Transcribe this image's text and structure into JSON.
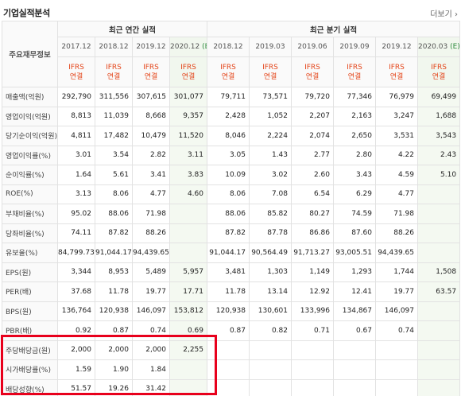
{
  "header": {
    "title": "기업실적분석",
    "more_label": "더보기 ›"
  },
  "table": {
    "row_header_label": "주요재무정보",
    "annual_group_label": "최근 연간 실적",
    "quarter_group_label": "최근 분기 실적",
    "estimate_mark": "(E)",
    "ifrs_line1": "IFRS",
    "ifrs_line2": "연결",
    "annual_periods": [
      "2017.12",
      "2018.12",
      "2019.12",
      "2020.12"
    ],
    "quarter_periods": [
      "2018.12",
      "2019.03",
      "2019.06",
      "2019.09",
      "2019.12",
      "2020.03"
    ],
    "rows": [
      {
        "label": "매출액(억원)",
        "values": [
          "292,790",
          "311,556",
          "307,615",
          "301,077",
          "79,711",
          "73,571",
          "79,720",
          "77,346",
          "76,979",
          "69,499"
        ]
      },
      {
        "label": "영업이익(억원)",
        "values": [
          "8,813",
          "11,039",
          "8,668",
          "9,357",
          "2,428",
          "1,052",
          "2,207",
          "2,163",
          "3,247",
          "1,688"
        ]
      },
      {
        "label": "당기순이익(억원)",
        "values": [
          "4,811",
          "17,482",
          "10,479",
          "11,520",
          "8,046",
          "2,224",
          "2,074",
          "2,650",
          "3,531",
          "3,543"
        ]
      },
      {
        "label": "영업이익률(%)",
        "values": [
          "3.01",
          "3.54",
          "2.82",
          "3.11",
          "3.05",
          "1.43",
          "2.77",
          "2.80",
          "4.22",
          "2.43"
        ]
      },
      {
        "label": "순이익률(%)",
        "values": [
          "1.64",
          "5.61",
          "3.41",
          "3.83",
          "10.09",
          "3.02",
          "2.60",
          "3.43",
          "4.59",
          "5.10"
        ]
      },
      {
        "label": "ROE(%)",
        "values": [
          "3.13",
          "8.06",
          "4.77",
          "4.60",
          "8.06",
          "7.08",
          "6.54",
          "6.29",
          "4.77",
          ""
        ]
      },
      {
        "label": "부채비율(%)",
        "values": [
          "95.02",
          "88.06",
          "71.98",
          "",
          "88.06",
          "85.82",
          "80.27",
          "74.59",
          "71.98",
          ""
        ]
      },
      {
        "label": "당좌비율(%)",
        "values": [
          "74.11",
          "87.82",
          "88.26",
          "",
          "87.82",
          "87.78",
          "86.86",
          "87.60",
          "88.26",
          ""
        ]
      },
      {
        "label": "유보율(%)",
        "values": [
          "84,799.73",
          "91,044.17",
          "94,439.65",
          "",
          "91,044.17",
          "90,564.49",
          "91,713.27",
          "93,005.51",
          "94,439.65",
          ""
        ]
      },
      {
        "label": "EPS(원)",
        "values": [
          "3,344",
          "8,953",
          "5,489",
          "5,957",
          "3,481",
          "1,303",
          "1,149",
          "1,293",
          "1,744",
          "1,508"
        ]
      },
      {
        "label": "PER(배)",
        "values": [
          "37.68",
          "11.78",
          "19.77",
          "17.71",
          "11.78",
          "13.14",
          "12.92",
          "12.41",
          "19.77",
          "63.57"
        ]
      },
      {
        "label": "BPS(원)",
        "values": [
          "136,764",
          "120,938",
          "146,097",
          "153,812",
          "120,938",
          "130,601",
          "133,996",
          "134,867",
          "146,097",
          ""
        ]
      },
      {
        "label": "PBR(배)",
        "values": [
          "0.92",
          "0.87",
          "0.74",
          "0.69",
          "0.87",
          "0.82",
          "0.71",
          "0.67",
          "0.74",
          ""
        ]
      },
      {
        "label": "주당배당금(원)",
        "values": [
          "2,000",
          "2,000",
          "2,000",
          "2,255",
          "",
          "",
          "",
          "",
          "",
          ""
        ]
      },
      {
        "label": "시가배당률(%)",
        "values": [
          "1.59",
          "1.90",
          "1.84",
          "",
          "",
          "",
          "",
          "",
          "",
          ""
        ]
      },
      {
        "label": "배당성향(%)",
        "values": [
          "51.57",
          "19.26",
          "31.42",
          "",
          "",
          "",
          "",
          "",
          "",
          ""
        ]
      }
    ]
  },
  "colors": {
    "ifrs_text": "#e4461b",
    "estimate_bg": "#f1f7ee",
    "highlight_border": "#e8001c"
  }
}
